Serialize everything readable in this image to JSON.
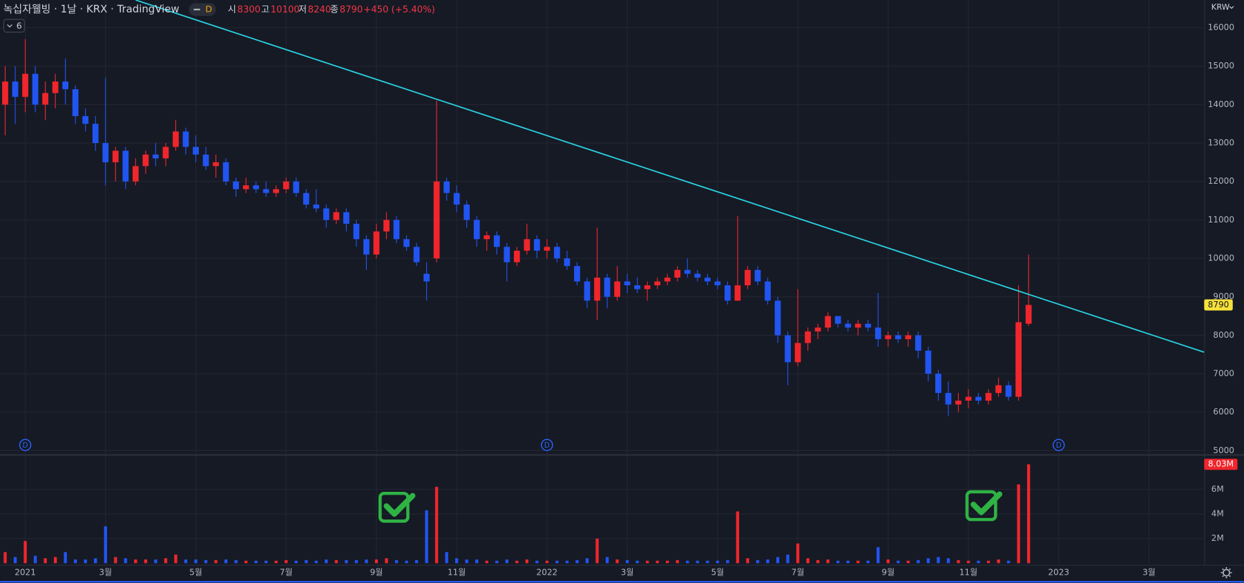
{
  "header": {
    "title": "녹십자웰빙 · 1날 · KRX · TradingView",
    "interval": "D",
    "collapse_count": "6",
    "currency": "KRW",
    "ohlc_labels": [
      "시",
      "고",
      "저",
      "종"
    ],
    "change": {
      "value": 450,
      "label": "+450 (+5.40%)"
    }
  },
  "chart_data": {
    "type": "candlestick",
    "up_color": "#f0262c",
    "down_color": "#2155f2",
    "grid": true,
    "categories": [
      null,
      null,
      "2021",
      null,
      null,
      null,
      null,
      null,
      null,
      null,
      "3월",
      null,
      null,
      null,
      null,
      null,
      null,
      null,
      null,
      "5월",
      null,
      null,
      null,
      null,
      null,
      null,
      null,
      null,
      "7월",
      null,
      null,
      null,
      null,
      null,
      null,
      null,
      null,
      "9월",
      null,
      null,
      null,
      null,
      null,
      null,
      null,
      "11월",
      null,
      null,
      null,
      null,
      null,
      null,
      null,
      null,
      "2022",
      null,
      null,
      null,
      null,
      null,
      null,
      null,
      "3월",
      null,
      null,
      null,
      null,
      null,
      null,
      null,
      null,
      "5월",
      null,
      null,
      null,
      null,
      null,
      null,
      null,
      "7월",
      null,
      null,
      null,
      null,
      null,
      null,
      null,
      null,
      "9월",
      null,
      null,
      null,
      null,
      null,
      null,
      null,
      "11월",
      null,
      null,
      null,
      null,
      null,
      null,
      null,
      null,
      "2023",
      null,
      null,
      null,
      null,
      null,
      null,
      null,
      null,
      "3월",
      null,
      null,
      null,
      null,
      null
    ],
    "open": [
      14000,
      14600,
      14200,
      14800,
      14000,
      14300,
      14600,
      14400,
      13700,
      13500,
      13000,
      12500,
      12800,
      12000,
      12400,
      12700,
      12600,
      12900,
      13300,
      12900,
      12700,
      12400,
      12500,
      12000,
      11800,
      11900,
      11800,
      11700,
      11800,
      12000,
      11700,
      11400,
      11300,
      11000,
      11200,
      10900,
      10500,
      10100,
      10700,
      11000,
      10500,
      10300,
      9600,
      10000,
      12000,
      11700,
      11400,
      11000,
      10500,
      10600,
      10300,
      9900,
      10200,
      10500,
      10200,
      10300,
      10000,
      9800,
      9400,
      8900,
      9500,
      9000,
      9400,
      9300,
      9200,
      9300,
      9400,
      9500,
      9700,
      9600,
      9500,
      9400,
      9300,
      8900,
      9300,
      9700,
      9400,
      8900,
      8000,
      7300,
      7800,
      8100,
      8200,
      8500,
      8300,
      8200,
      8300,
      8200,
      7900,
      8000,
      7900,
      8000,
      7600,
      7000,
      6500,
      6200,
      6300,
      6400,
      6300,
      6500,
      6700,
      6400,
      8300,
      null,
      null,
      null,
      null,
      null,
      null,
      null,
      null,
      null,
      null,
      null,
      null,
      null,
      null,
      null,
      null,
      null
    ],
    "high": [
      15000,
      15000,
      15700,
      15000,
      14600,
      14800,
      15200,
      14500,
      13900,
      13700,
      14700,
      12900,
      12900,
      12600,
      12800,
      13000,
      13000,
      13600,
      13400,
      13200,
      12900,
      12700,
      12600,
      12100,
      12100,
      12000,
      12000,
      11900,
      12100,
      12100,
      11800,
      11800,
      11400,
      11300,
      11300,
      11000,
      10600,
      10900,
      11200,
      11100,
      10600,
      10400,
      9900,
      14100,
      12100,
      11900,
      11500,
      11100,
      10700,
      10700,
      10400,
      10300,
      10900,
      10600,
      10500,
      10400,
      10200,
      9900,
      9500,
      10800,
      9600,
      9800,
      9600,
      9500,
      9400,
      9500,
      9600,
      9800,
      10000,
      9700,
      9600,
      9500,
      9400,
      11100,
      9800,
      9800,
      9500,
      9000,
      8100,
      9200,
      8200,
      8300,
      8600,
      8500,
      8400,
      8400,
      8400,
      9100,
      8100,
      8100,
      8100,
      8100,
      7700,
      7100,
      6800,
      6500,
      6600,
      6500,
      6600,
      6900,
      6800,
      9300,
      10100,
      null,
      null,
      null,
      null,
      null,
      null,
      null,
      null,
      null,
      null,
      null,
      null,
      null,
      null,
      null,
      null,
      null
    ],
    "low": [
      13200,
      13500,
      13800,
      13800,
      13600,
      13900,
      14000,
      13500,
      13300,
      12800,
      11900,
      12000,
      11800,
      11900,
      12200,
      12400,
      12400,
      12800,
      12700,
      12500,
      12300,
      12100,
      11900,
      11600,
      11700,
      11700,
      11600,
      11600,
      11700,
      11600,
      11300,
      11200,
      10800,
      10900,
      10700,
      10300,
      9700,
      10000,
      10500,
      10400,
      10200,
      9800,
      8900,
      9900,
      11500,
      11200,
      10800,
      10300,
      10200,
      10100,
      9400,
      9800,
      10100,
      10000,
      10000,
      9900,
      9700,
      9300,
      8700,
      8400,
      8700,
      8900,
      9100,
      9100,
      8900,
      9200,
      9300,
      9400,
      9500,
      9400,
      9300,
      9200,
      8800,
      8900,
      9200,
      9300,
      8800,
      7800,
      6700,
      7200,
      7600,
      7900,
      8100,
      8200,
      8100,
      8000,
      8100,
      7700,
      7700,
      7800,
      7700,
      7400,
      6800,
      6300,
      5900,
      6000,
      6100,
      6200,
      6200,
      6400,
      6300,
      6300,
      8240,
      null,
      null,
      null,
      null,
      null,
      null,
      null,
      null,
      null,
      null,
      null,
      null,
      null,
      null,
      null,
      null,
      null
    ],
    "close": [
      14600,
      14200,
      14800,
      14000,
      14300,
      14600,
      14400,
      13700,
      13500,
      13000,
      12500,
      12800,
      12000,
      12400,
      12700,
      12600,
      12900,
      13300,
      12900,
      12700,
      12400,
      12500,
      12000,
      11800,
      11900,
      11800,
      11700,
      11800,
      12000,
      11700,
      11400,
      11300,
      11000,
      11200,
      10900,
      10500,
      10100,
      10700,
      11000,
      10500,
      10300,
      9900,
      9400,
      12000,
      11700,
      11400,
      11000,
      10500,
      10600,
      10300,
      9900,
      10200,
      10500,
      10200,
      10300,
      10000,
      9800,
      9400,
      8900,
      9500,
      9000,
      9400,
      9300,
      9200,
      9300,
      9400,
      9500,
      9700,
      9600,
      9500,
      9400,
      9300,
      8900,
      9300,
      9700,
      9400,
      8900,
      8000,
      7300,
      7800,
      8100,
      8200,
      8500,
      8300,
      8200,
      8300,
      8200,
      7900,
      8000,
      7900,
      8000,
      7600,
      7000,
      6500,
      6200,
      6300,
      6400,
      6300,
      6500,
      6700,
      6400,
      8340,
      8790,
      null,
      null,
      null,
      null,
      null,
      null,
      null,
      null,
      null,
      null,
      null,
      null,
      null,
      null,
      null,
      null,
      null
    ],
    "volume": [
      900000,
      500000,
      1800000,
      600000,
      400000,
      500000,
      900000,
      300000,
      300000,
      400000,
      3000000,
      500000,
      400000,
      300000,
      300000,
      300000,
      400000,
      700000,
      300000,
      300000,
      250000,
      250000,
      300000,
      250000,
      200000,
      200000,
      200000,
      200000,
      250000,
      200000,
      250000,
      200000,
      300000,
      250000,
      250000,
      250000,
      300000,
      300000,
      400000,
      250000,
      200000,
      250000,
      4300000,
      6200000,
      900000,
      400000,
      300000,
      300000,
      200000,
      200000,
      300000,
      200000,
      300000,
      200000,
      200000,
      200000,
      200000,
      250000,
      400000,
      2000000,
      500000,
      300000,
      250000,
      200000,
      200000,
      200000,
      200000,
      250000,
      200000,
      200000,
      200000,
      200000,
      250000,
      4200000,
      400000,
      250000,
      300000,
      500000,
      700000,
      1600000,
      400000,
      250000,
      300000,
      200000,
      200000,
      200000,
      200000,
      1300000,
      300000,
      200000,
      200000,
      250000,
      400000,
      500000,
      400000,
      250000,
      200000,
      200000,
      200000,
      300000,
      200000,
      6400000,
      8030000,
      null,
      null,
      null,
      null,
      null,
      null,
      null,
      null,
      null,
      null,
      null,
      null,
      null,
      null,
      null,
      null,
      null
    ],
    "last_volume_label": "8.03M",
    "ylim": [
      4920,
      16720
    ],
    "yticks": [
      5000,
      6000,
      7000,
      8000,
      9000,
      10000,
      11000,
      12000,
      13000,
      14000,
      15000,
      16000
    ],
    "vlim": [
      0,
      8700000
    ],
    "vticks": [
      {
        "value": 2000000,
        "label": "2M"
      },
      {
        "value": 4000000,
        "label": "4M"
      },
      {
        "value": 6000000,
        "label": "6M"
      }
    ],
    "trendline": {
      "x": [
        13,
        119.5
      ],
      "values": [
        16720,
        7560
      ],
      "color": "#2ad0e0"
    },
    "events": {
      "label": "D",
      "x": [
        2,
        54,
        105
      ],
      "color": "#2962ff"
    }
  }
}
